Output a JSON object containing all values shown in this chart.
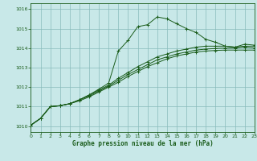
{
  "xlabel": "Graphe pression niveau de la mer (hPa)",
  "xlim": [
    0,
    23
  ],
  "ylim": [
    1009.7,
    1016.3
  ],
  "yticks": [
    1010,
    1011,
    1012,
    1013,
    1014,
    1015,
    1016
  ],
  "xticks": [
    0,
    1,
    2,
    3,
    4,
    5,
    6,
    7,
    8,
    9,
    10,
    11,
    12,
    13,
    14,
    15,
    16,
    17,
    18,
    19,
    20,
    21,
    22,
    23
  ],
  "background_color": "#c8e8e8",
  "grid_color": "#88bbbb",
  "line_color": "#1a5c1a",
  "line1": [
    1010.05,
    1010.4,
    1011.0,
    1011.05,
    1011.15,
    1011.35,
    1011.6,
    1011.9,
    1012.2,
    1013.85,
    1014.4,
    1015.1,
    1015.2,
    1015.6,
    1015.5,
    1015.25,
    1015.0,
    1014.8,
    1014.45,
    1014.3,
    1014.1,
    1014.05,
    1014.2,
    1014.15
  ],
  "line2": [
    1010.05,
    1010.4,
    1011.0,
    1011.05,
    1011.15,
    1011.35,
    1011.6,
    1011.85,
    1012.1,
    1012.45,
    1012.75,
    1013.05,
    1013.3,
    1013.55,
    1013.7,
    1013.85,
    1013.95,
    1014.05,
    1014.1,
    1014.1,
    1014.1,
    1014.05,
    1014.1,
    1014.1
  ],
  "line3": [
    1010.05,
    1010.4,
    1011.0,
    1011.05,
    1011.15,
    1011.35,
    1011.55,
    1011.8,
    1012.05,
    1012.35,
    1012.65,
    1012.9,
    1013.15,
    1013.4,
    1013.55,
    1013.7,
    1013.8,
    1013.9,
    1013.95,
    1013.98,
    1014.0,
    1014.0,
    1014.05,
    1014.0
  ],
  "line4": [
    1010.05,
    1010.4,
    1011.0,
    1011.05,
    1011.15,
    1011.3,
    1011.5,
    1011.75,
    1012.0,
    1012.25,
    1012.55,
    1012.8,
    1013.05,
    1013.25,
    1013.45,
    1013.6,
    1013.7,
    1013.8,
    1013.85,
    1013.88,
    1013.9,
    1013.9,
    1013.9,
    1013.9
  ]
}
